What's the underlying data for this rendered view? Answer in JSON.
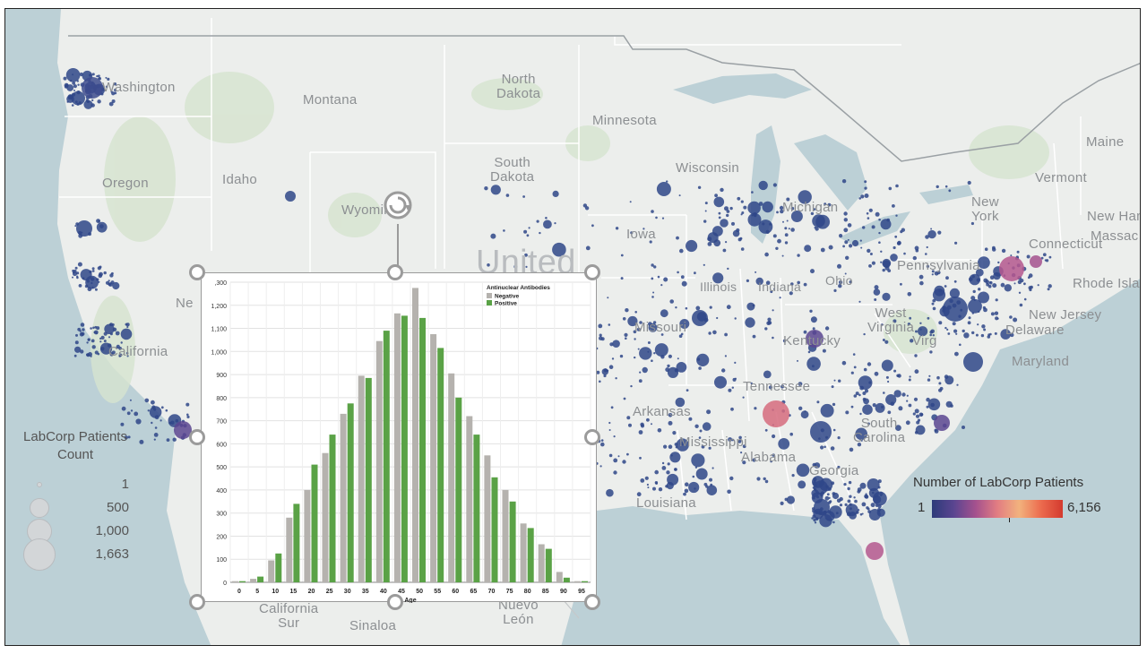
{
  "map": {
    "labels": {
      "washington": "Washington",
      "montana": "Montana",
      "north_dakota_1": "North",
      "north_dakota_2": "Dakota",
      "minnesota": "Minnesota",
      "oregon": "Oregon",
      "idaho": "Idaho",
      "south_dakota_1": "South",
      "south_dakota_2": "Dakota",
      "wisconsin": "Wisconsin",
      "wyoming": "Wyoming",
      "iowa": "Iowa",
      "michigan": "Michigan",
      "new_york_1": "New",
      "new_york_2": "York",
      "vermont": "Vermont",
      "maine": "Maine",
      "new_hampshire": "New Ham",
      "massachusetts": "Massac",
      "connecticut": "Connecticut",
      "rhode_island": "Rhode Isla",
      "pennsylvania": "Pennsylvania",
      "illinois": "Illinois",
      "indiana": "Indiana",
      "ohio": "Ohio",
      "new_jersey": "New Jersey",
      "delaware": "Delaware",
      "maryland": "Maryland",
      "west_virginia_1": "West",
      "west_virginia_2": "Virginia",
      "virginia": "Virg",
      "kentucky": "Kentucky",
      "missouri": "Missouri",
      "united": "United",
      "california": "California",
      "nevada": "Ne",
      "tennessee": "Tennessee",
      "arkansas": "Arkansas",
      "mississippi": "Mississippi",
      "alabama": "Alabama",
      "georgia": "Georgia",
      "south_carolina_1": "South",
      "south_carolina_2": "Carolina",
      "louisiana": "Louisiana",
      "california_sur_1": "California",
      "california_sur_2": "Sur",
      "sinaloa": "Sinaloa",
      "nuevo_leon_1": "Nuevo",
      "nuevo_leon_2": "León"
    },
    "colors": {
      "land": "#eceeec",
      "water": "#bcd0d6",
      "park": "#d6e4cf",
      "border": "#ffffff",
      "dot": "#2f4788"
    }
  },
  "size_legend": {
    "title_1": "LabCorp Patients",
    "title_2": "Count",
    "entries": [
      "1",
      "500",
      "1,000",
      "1,663"
    ]
  },
  "color_legend": {
    "title": "Number of LabCorp Patients",
    "min": "1",
    "max": "6,156"
  },
  "chart_data": {
    "type": "bar",
    "xlabel": "Age",
    "ylabel": "",
    "legend_title": "Antinuclear Antibodies",
    "ylim": [
      0,
      1300
    ],
    "y_ticks": [
      "0",
      "100",
      "200",
      "300",
      "400",
      "500",
      "600",
      "700",
      "800",
      "900",
      "1,000",
      "1,100",
      "1,200",
      "1,300"
    ],
    "y_top_label": ",300",
    "categories": [
      "0",
      "5",
      "10",
      "15",
      "20",
      "25",
      "30",
      "35",
      "40",
      "45",
      "50",
      "55",
      "60",
      "65",
      "70",
      "75",
      "80",
      "85",
      "90",
      "95"
    ],
    "series": [
      {
        "name": "Negative",
        "color": "#b5b2ae",
        "values": [
          5,
          15,
          95,
          280,
          400,
          560,
          730,
          895,
          1045,
          1165,
          1275,
          1075,
          905,
          720,
          550,
          400,
          255,
          165,
          45,
          5
        ]
      },
      {
        "name": "Positive",
        "color": "#5aa246",
        "values": [
          5,
          25,
          125,
          340,
          510,
          640,
          775,
          885,
          1090,
          1155,
          1145,
          1015,
          800,
          640,
          455,
          350,
          235,
          145,
          20,
          5
        ]
      }
    ],
    "legend_position": "top-right"
  }
}
